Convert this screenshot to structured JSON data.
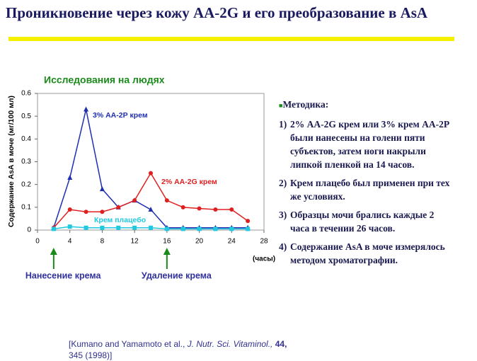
{
  "header": {
    "title": "Проникновение через кожу АА-2G и его преобразование в AsA"
  },
  "chart_data": {
    "type": "line",
    "subtitle": "Исследования на людях",
    "y_label": "Содержание AsA  в моче (мг/100 мл)",
    "x_label": "(часы)",
    "x": [
      2,
      4,
      6,
      8,
      10,
      12,
      14,
      16,
      18,
      20,
      22,
      24,
      26
    ],
    "series": [
      {
        "name": "3% АА-2Р крем",
        "color": "#1f2fb0",
        "marker": "triangle",
        "values": [
          0.01,
          0.23,
          0.53,
          0.18,
          0.1,
          0.13,
          0.09,
          0.01,
          0.01,
          0.01,
          0.01,
          0.01,
          0.01
        ]
      },
      {
        "name": "2% АА-2G крем",
        "color": "#e02020",
        "marker": "circle",
        "values": [
          0.01,
          0.09,
          0.08,
          0.08,
          0.1,
          0.13,
          0.25,
          0.13,
          0.1,
          0.095,
          0.09,
          0.09,
          0.04
        ]
      },
      {
        "name": "Крем плацебо",
        "color": "#20c8e0",
        "marker": "square",
        "values": [
          0.005,
          0.015,
          0.01,
          0.01,
          0.01,
          0.01,
          0.01,
          0.005,
          0.005,
          0.005,
          0.005,
          0.005,
          0.005
        ]
      }
    ],
    "xlim": [
      0,
      28
    ],
    "xticks": [
      0,
      4,
      8,
      12,
      16,
      20,
      24,
      28
    ],
    "ylim": [
      0,
      0.6
    ],
    "yticks": [
      0,
      0.1,
      0.2,
      0.3,
      0.4,
      0.5,
      0.6
    ],
    "annotations": [
      {
        "text": "Нанесение крема",
        "x": 2,
        "color": "#3030a0"
      },
      {
        "text": "Удаление крема",
        "x": 16,
        "color": "#3030a0"
      }
    ]
  },
  "method": {
    "heading": "Методика:",
    "items": [
      {
        "number": "1)",
        "text": "2% АА-2G крем или 3% крем АА-2Р были нанесены на голени пяти субъектов, затем ноги накрыли липкой пленкой на 14 часов."
      },
      {
        "number": "2)",
        "text": "Крем плацебо был применен при тех же условиях."
      },
      {
        "number": "3)",
        "text": "Образцы мочи брались каждые 2 часа в течении 26 часов."
      },
      {
        "number": "4)",
        "text": "Содержание AsA в моче измерялось методом хроматографии."
      }
    ]
  },
  "citation": {
    "authors": "[Kumano and Yamamoto et al.,",
    "journal": "J. Nutr. Sci. Vitaminol.,",
    "volume": "44,",
    "rest": "345 (1998)]"
  }
}
